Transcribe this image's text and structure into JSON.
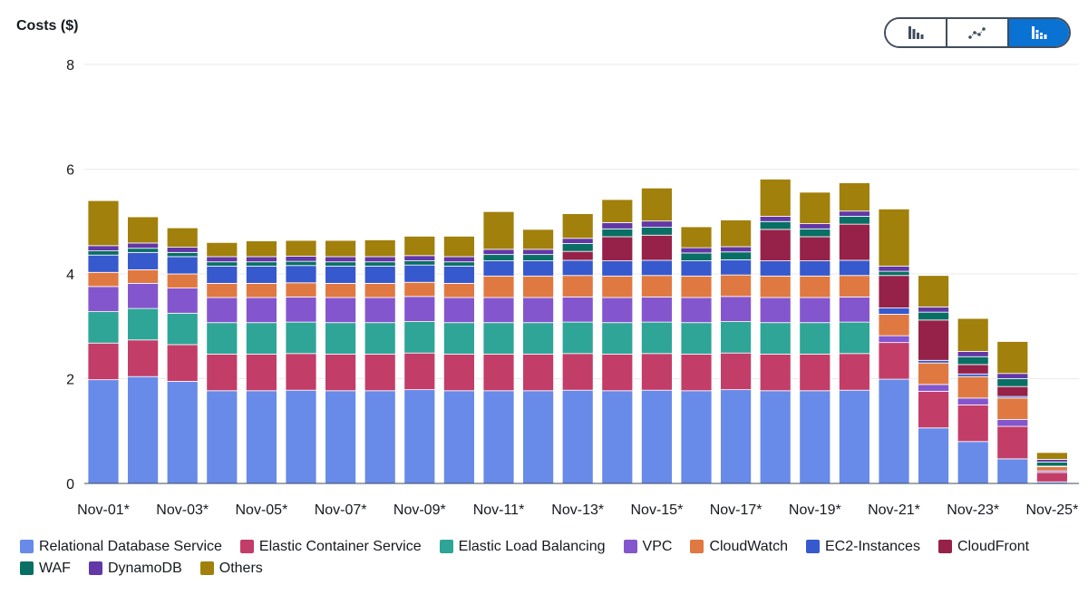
{
  "ui": {
    "chart_type_toggle": {
      "options": [
        {
          "name": "bar-chart-icon",
          "selected": false
        },
        {
          "name": "line-chart-icon",
          "selected": false
        },
        {
          "name": "stacked-bar-chart-icon",
          "selected": true
        }
      ],
      "selected_color": "#0972d3"
    }
  },
  "chart_data": {
    "type": "bar",
    "stacked": true,
    "title": "Costs ($)",
    "xlabel": "",
    "ylabel": "",
    "ylim": [
      0,
      8
    ],
    "yticks": [
      0,
      2,
      4,
      6,
      8
    ],
    "grid": true,
    "legend_position": "bottom",
    "categories": [
      "Nov-01*",
      "Nov-02*",
      "Nov-03*",
      "Nov-04*",
      "Nov-05*",
      "Nov-06*",
      "Nov-07*",
      "Nov-08*",
      "Nov-09*",
      "Nov-10*",
      "Nov-11*",
      "Nov-12*",
      "Nov-13*",
      "Nov-14*",
      "Nov-15*",
      "Nov-16*",
      "Nov-17*",
      "Nov-18*",
      "Nov-19*",
      "Nov-20*",
      "Nov-21*",
      "Nov-22*",
      "Nov-23*",
      "Nov-24*",
      "Nov-25*"
    ],
    "x_tick_labels": [
      "Nov-01*",
      "Nov-03*",
      "Nov-05*",
      "Nov-07*",
      "Nov-09*",
      "Nov-11*",
      "Nov-13*",
      "Nov-15*",
      "Nov-17*",
      "Nov-19*",
      "Nov-21*",
      "Nov-23*",
      "Nov-25*"
    ],
    "series": [
      {
        "name": "Relational Database Service",
        "color": "#688ae8",
        "values": [
          1.98,
          2.04,
          1.95,
          1.77,
          1.77,
          1.78,
          1.77,
          1.77,
          1.79,
          1.77,
          1.77,
          1.77,
          1.78,
          1.77,
          1.78,
          1.77,
          1.79,
          1.77,
          1.77,
          1.78,
          1.99,
          1.06,
          0.8,
          0.47,
          0.03
        ]
      },
      {
        "name": "Elastic Container Service",
        "color": "#c33d69",
        "values": [
          0.7,
          0.7,
          0.7,
          0.7,
          0.7,
          0.7,
          0.7,
          0.7,
          0.7,
          0.7,
          0.7,
          0.7,
          0.7,
          0.7,
          0.7,
          0.7,
          0.7,
          0.7,
          0.7,
          0.7,
          0.7,
          0.7,
          0.7,
          0.62,
          0.18
        ]
      },
      {
        "name": "Elastic Load Balancing",
        "color": "#2ea597",
        "values": [
          0.6,
          0.6,
          0.6,
          0.6,
          0.6,
          0.6,
          0.6,
          0.6,
          0.6,
          0.6,
          0.6,
          0.6,
          0.6,
          0.6,
          0.6,
          0.6,
          0.6,
          0.6,
          0.6,
          0.6,
          0.0,
          0.0,
          0.0,
          0.0,
          0.0
        ]
      },
      {
        "name": "VPC",
        "color": "#8456ce",
        "values": [
          0.48,
          0.48,
          0.48,
          0.48,
          0.48,
          0.48,
          0.48,
          0.48,
          0.48,
          0.48,
          0.48,
          0.48,
          0.48,
          0.48,
          0.48,
          0.48,
          0.48,
          0.48,
          0.48,
          0.48,
          0.13,
          0.13,
          0.13,
          0.13,
          0.03
        ]
      },
      {
        "name": "CloudWatch",
        "color": "#e07941",
        "values": [
          0.27,
          0.26,
          0.27,
          0.27,
          0.27,
          0.27,
          0.27,
          0.27,
          0.27,
          0.27,
          0.41,
          0.41,
          0.41,
          0.41,
          0.41,
          0.41,
          0.41,
          0.41,
          0.41,
          0.41,
          0.41,
          0.41,
          0.41,
          0.41,
          0.08
        ]
      },
      {
        "name": "EC2-Instances",
        "color": "#3759ce",
        "values": [
          0.33,
          0.33,
          0.33,
          0.33,
          0.33,
          0.33,
          0.33,
          0.33,
          0.33,
          0.33,
          0.29,
          0.29,
          0.29,
          0.29,
          0.29,
          0.29,
          0.29,
          0.29,
          0.29,
          0.29,
          0.12,
          0.05,
          0.05,
          0.03,
          0.01
        ]
      },
      {
        "name": "CloudFront",
        "color": "#962249",
        "values": [
          0.0,
          0.0,
          0.0,
          0.0,
          0.0,
          0.0,
          0.0,
          0.0,
          0.0,
          0.0,
          0.0,
          0.0,
          0.17,
          0.46,
          0.48,
          0.0,
          0.0,
          0.6,
          0.46,
          0.69,
          0.62,
          0.77,
          0.18,
          0.19,
          0.0
        ]
      },
      {
        "name": "WAF",
        "color": "#096f64",
        "values": [
          0.08,
          0.08,
          0.08,
          0.08,
          0.08,
          0.08,
          0.08,
          0.08,
          0.08,
          0.08,
          0.12,
          0.12,
          0.15,
          0.15,
          0.15,
          0.15,
          0.15,
          0.15,
          0.15,
          0.15,
          0.08,
          0.15,
          0.15,
          0.15,
          0.08
        ]
      },
      {
        "name": "DynamoDB",
        "color": "#6237a7",
        "values": [
          0.1,
          0.1,
          0.1,
          0.1,
          0.1,
          0.1,
          0.1,
          0.1,
          0.1,
          0.1,
          0.1,
          0.1,
          0.1,
          0.12,
          0.12,
          0.1,
          0.1,
          0.1,
          0.1,
          0.1,
          0.1,
          0.1,
          0.1,
          0.1,
          0.05
        ]
      },
      {
        "name": "Others",
        "color": "#a1800b",
        "values": [
          0.86,
          0.5,
          0.37,
          0.27,
          0.3,
          0.3,
          0.31,
          0.32,
          0.37,
          0.39,
          0.72,
          0.38,
          0.47,
          0.44,
          0.63,
          0.4,
          0.51,
          0.71,
          0.6,
          0.54,
          1.09,
          0.6,
          0.63,
          0.61,
          0.13
        ]
      }
    ]
  }
}
